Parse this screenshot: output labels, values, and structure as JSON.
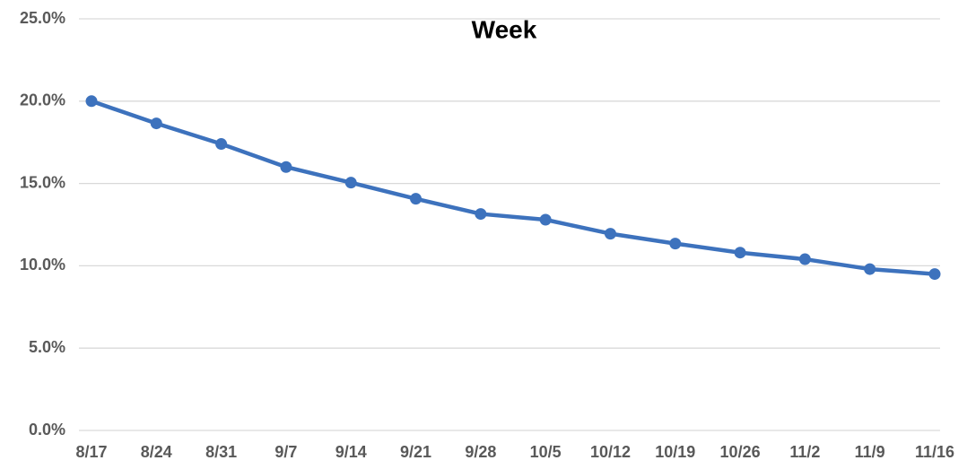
{
  "chart_data": {
    "type": "line",
    "title": "Week",
    "categories": [
      "8/17",
      "8/24",
      "8/31",
      "9/7",
      "9/14",
      "9/21",
      "9/28",
      "10/5",
      "10/12",
      "10/19",
      "10/26",
      "11/2",
      "11/9",
      "11/16"
    ],
    "values": [
      20.0,
      18.65,
      17.4,
      16.0,
      15.05,
      14.07,
      13.15,
      12.8,
      11.95,
      11.35,
      10.8,
      10.4,
      9.8,
      9.5
    ],
    "color": "#3d72bd",
    "ylim": [
      0,
      25
    ],
    "yticks": [
      {
        "value": 0,
        "label": "0.0%"
      },
      {
        "value": 5,
        "label": "5.0%"
      },
      {
        "value": 10,
        "label": "10.0%"
      },
      {
        "value": 15,
        "label": "15.0%"
      },
      {
        "value": 20,
        "label": "20.0%"
      },
      {
        "value": 25,
        "label": "25.0%"
      }
    ],
    "grid": true
  }
}
